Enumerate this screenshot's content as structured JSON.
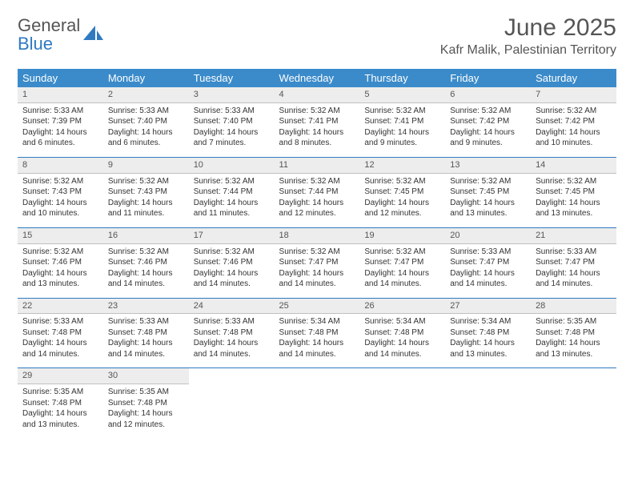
{
  "logo": {
    "text1": "General",
    "text2": "Blue"
  },
  "title": "June 2025",
  "location": "Kafr Malik, Palestinian Territory",
  "colors": {
    "header_bg": "#3b8bca",
    "header_text": "#ffffff",
    "daynum_bg": "#ededed",
    "row_sep": "#2f7ac0",
    "logo_blue": "#2f7ac0",
    "text": "#333333",
    "muted": "#555555",
    "page_bg": "#ffffff"
  },
  "weekdays": [
    "Sunday",
    "Monday",
    "Tuesday",
    "Wednesday",
    "Thursday",
    "Friday",
    "Saturday"
  ],
  "weeks": [
    [
      {
        "n": "1",
        "sr": "5:33 AM",
        "ss": "7:39 PM",
        "dl": "14 hours and 6 minutes."
      },
      {
        "n": "2",
        "sr": "5:33 AM",
        "ss": "7:40 PM",
        "dl": "14 hours and 6 minutes."
      },
      {
        "n": "3",
        "sr": "5:33 AM",
        "ss": "7:40 PM",
        "dl": "14 hours and 7 minutes."
      },
      {
        "n": "4",
        "sr": "5:32 AM",
        "ss": "7:41 PM",
        "dl": "14 hours and 8 minutes."
      },
      {
        "n": "5",
        "sr": "5:32 AM",
        "ss": "7:41 PM",
        "dl": "14 hours and 9 minutes."
      },
      {
        "n": "6",
        "sr": "5:32 AM",
        "ss": "7:42 PM",
        "dl": "14 hours and 9 minutes."
      },
      {
        "n": "7",
        "sr": "5:32 AM",
        "ss": "7:42 PM",
        "dl": "14 hours and 10 minutes."
      }
    ],
    [
      {
        "n": "8",
        "sr": "5:32 AM",
        "ss": "7:43 PM",
        "dl": "14 hours and 10 minutes."
      },
      {
        "n": "9",
        "sr": "5:32 AM",
        "ss": "7:43 PM",
        "dl": "14 hours and 11 minutes."
      },
      {
        "n": "10",
        "sr": "5:32 AM",
        "ss": "7:44 PM",
        "dl": "14 hours and 11 minutes."
      },
      {
        "n": "11",
        "sr": "5:32 AM",
        "ss": "7:44 PM",
        "dl": "14 hours and 12 minutes."
      },
      {
        "n": "12",
        "sr": "5:32 AM",
        "ss": "7:45 PM",
        "dl": "14 hours and 12 minutes."
      },
      {
        "n": "13",
        "sr": "5:32 AM",
        "ss": "7:45 PM",
        "dl": "14 hours and 13 minutes."
      },
      {
        "n": "14",
        "sr": "5:32 AM",
        "ss": "7:45 PM",
        "dl": "14 hours and 13 minutes."
      }
    ],
    [
      {
        "n": "15",
        "sr": "5:32 AM",
        "ss": "7:46 PM",
        "dl": "14 hours and 13 minutes."
      },
      {
        "n": "16",
        "sr": "5:32 AM",
        "ss": "7:46 PM",
        "dl": "14 hours and 14 minutes."
      },
      {
        "n": "17",
        "sr": "5:32 AM",
        "ss": "7:46 PM",
        "dl": "14 hours and 14 minutes."
      },
      {
        "n": "18",
        "sr": "5:32 AM",
        "ss": "7:47 PM",
        "dl": "14 hours and 14 minutes."
      },
      {
        "n": "19",
        "sr": "5:32 AM",
        "ss": "7:47 PM",
        "dl": "14 hours and 14 minutes."
      },
      {
        "n": "20",
        "sr": "5:33 AM",
        "ss": "7:47 PM",
        "dl": "14 hours and 14 minutes."
      },
      {
        "n": "21",
        "sr": "5:33 AM",
        "ss": "7:47 PM",
        "dl": "14 hours and 14 minutes."
      }
    ],
    [
      {
        "n": "22",
        "sr": "5:33 AM",
        "ss": "7:48 PM",
        "dl": "14 hours and 14 minutes."
      },
      {
        "n": "23",
        "sr": "5:33 AM",
        "ss": "7:48 PM",
        "dl": "14 hours and 14 minutes."
      },
      {
        "n": "24",
        "sr": "5:33 AM",
        "ss": "7:48 PM",
        "dl": "14 hours and 14 minutes."
      },
      {
        "n": "25",
        "sr": "5:34 AM",
        "ss": "7:48 PM",
        "dl": "14 hours and 14 minutes."
      },
      {
        "n": "26",
        "sr": "5:34 AM",
        "ss": "7:48 PM",
        "dl": "14 hours and 14 minutes."
      },
      {
        "n": "27",
        "sr": "5:34 AM",
        "ss": "7:48 PM",
        "dl": "14 hours and 13 minutes."
      },
      {
        "n": "28",
        "sr": "5:35 AM",
        "ss": "7:48 PM",
        "dl": "14 hours and 13 minutes."
      }
    ],
    [
      {
        "n": "29",
        "sr": "5:35 AM",
        "ss": "7:48 PM",
        "dl": "14 hours and 13 minutes."
      },
      {
        "n": "30",
        "sr": "5:35 AM",
        "ss": "7:48 PM",
        "dl": "14 hours and 12 minutes."
      },
      null,
      null,
      null,
      null,
      null
    ]
  ],
  "labels": {
    "sunrise": "Sunrise: ",
    "sunset": "Sunset: ",
    "daylight": "Daylight: "
  },
  "font": {
    "month_title_pt": 30,
    "location_pt": 16,
    "weekday_pt": 13,
    "daynum_pt": 11,
    "body_pt": 10
  }
}
